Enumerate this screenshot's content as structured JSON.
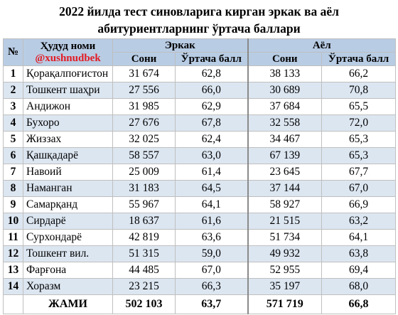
{
  "title": {
    "line1": "2022 йилда тест синовларига кирган эркак ва аёл",
    "line2": "абитуриентларнинг ўртача баллари"
  },
  "headers": {
    "num": "№",
    "region": "Ҳудуд номи",
    "handle": "@xushnudbek",
    "male": "Эркак",
    "female": "Аёл",
    "count": "Сони",
    "avg": "Ўртача балл"
  },
  "rows": [
    {
      "n": "1",
      "region": "Қорақалпоғистон",
      "m_count": "31 674",
      "m_avg": "62,8",
      "f_count": "38 133",
      "f_avg": "66,2"
    },
    {
      "n": "2",
      "region": "Тошкент шаҳри",
      "m_count": "27 556",
      "m_avg": "66,0",
      "f_count": "30 689",
      "f_avg": "70,8"
    },
    {
      "n": "3",
      "region": "Андижон",
      "m_count": "31 985",
      "m_avg": "62,9",
      "f_count": "37 684",
      "f_avg": "65,5"
    },
    {
      "n": "4",
      "region": "Бухоро",
      "m_count": "27 676",
      "m_avg": "67,8",
      "f_count": "32 558",
      "f_avg": "72,0"
    },
    {
      "n": "5",
      "region": "Жиззах",
      "m_count": "32 025",
      "m_avg": "62,4",
      "f_count": "34 467",
      "f_avg": "65,3"
    },
    {
      "n": "6",
      "region": "Қашқадарё",
      "m_count": "58 557",
      "m_avg": "63,0",
      "f_count": "67 139",
      "f_avg": "65,3"
    },
    {
      "n": "7",
      "region": "Навоий",
      "m_count": "25 009",
      "m_avg": "61,4",
      "f_count": "23 645",
      "f_avg": "67,7"
    },
    {
      "n": "8",
      "region": "Наманган",
      "m_count": "31 183",
      "m_avg": "64,5",
      "f_count": "37 144",
      "f_avg": "67,0"
    },
    {
      "n": "9",
      "region": "Самарқанд",
      "m_count": "55 967",
      "m_avg": "64,1",
      "f_count": "58 927",
      "f_avg": "66,9"
    },
    {
      "n": "10",
      "region": "Сирдарё",
      "m_count": "18 637",
      "m_avg": "61,6",
      "f_count": "21 515",
      "f_avg": "63,2"
    },
    {
      "n": "11",
      "region": "Сурхондарё",
      "m_count": "42 819",
      "m_avg": "63,6",
      "f_count": "51 734",
      "f_avg": "64,1"
    },
    {
      "n": "12",
      "region": "Тошкент вил.",
      "m_count": "51 315",
      "m_avg": "59,0",
      "f_count": "49 932",
      "f_avg": "63,8"
    },
    {
      "n": "13",
      "region": "Фарғона",
      "m_count": "44 485",
      "m_avg": "67,0",
      "f_count": "52 955",
      "f_avg": "69,4"
    },
    {
      "n": "14",
      "region": "Хоразм",
      "m_count": "23 215",
      "m_avg": "66,3",
      "f_count": "35 197",
      "f_avg": "68,0"
    }
  ],
  "total": {
    "label": "ЖАМИ",
    "m_count": "502 103",
    "m_avg": "63,7",
    "f_count": "571 719",
    "f_avg": "66,8"
  },
  "colors": {
    "header_bg": "#b8cce4",
    "stripe_bg": "#dce6f1",
    "handle_text": "#e31b23"
  }
}
